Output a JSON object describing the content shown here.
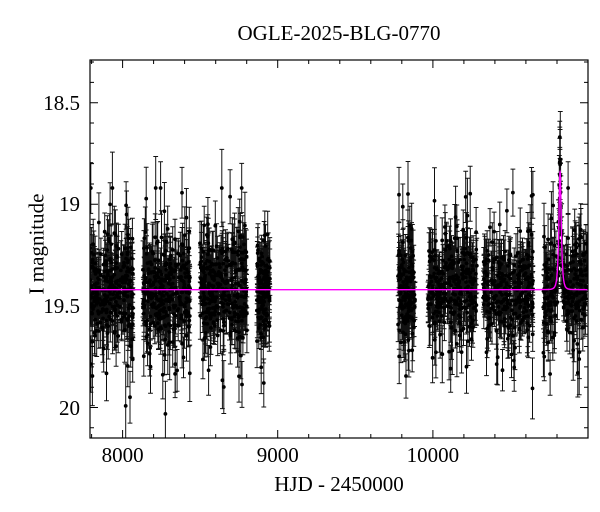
{
  "title": "OGLE-2025-BLG-0770",
  "chart_data": {
    "type": "scatter",
    "title": "OGLE-2025-BLG-0770",
    "xlabel": "HJD - 2450000",
    "ylabel": "I magnitude",
    "xlim": [
      7790,
      11000
    ],
    "ylim": [
      20.15,
      18.29
    ],
    "y_axis_inverted": true,
    "grid": false,
    "x_major_ticks": [
      8000,
      9000,
      10000
    ],
    "x_tick_labels": [
      "8000",
      "9000",
      "10000"
    ],
    "x_minor_step": 200,
    "y_major_ticks": [
      18.5,
      19.0,
      19.5,
      20.0
    ],
    "y_tick_labels": [
      "18.5",
      "19",
      "19.5",
      "20"
    ],
    "y_minor_step": 0.1,
    "marker_color": "#000000",
    "model_color": "#ff00ff",
    "baseline_mag": 19.42,
    "model": {
      "kind": "paczynski",
      "t0": 10820,
      "tE": 11,
      "u0": 0.685,
      "I0": 19.42,
      "I_peak": 18.84
    },
    "seasons": [
      {
        "t_start": 7790,
        "t_end": 8067,
        "n_points": 300,
        "mag_mean": 19.42,
        "sigma_core": 0.115,
        "sigma_tail": 0.26,
        "tail_frac": 0.18
      },
      {
        "t_start": 8131,
        "t_end": 8434,
        "n_points": 330,
        "mag_mean": 19.42,
        "sigma_core": 0.115,
        "sigma_tail": 0.26,
        "tail_frac": 0.18
      },
      {
        "t_start": 8499,
        "t_end": 8802,
        "n_points": 330,
        "mag_mean": 19.42,
        "sigma_core": 0.115,
        "sigma_tail": 0.26,
        "tail_frac": 0.18
      },
      {
        "t_start": 8866,
        "t_end": 8950,
        "n_points": 140,
        "mag_mean": 19.42,
        "sigma_core": 0.11,
        "sigma_tail": 0.22,
        "tail_frac": 0.15
      },
      {
        "t_start": 9775,
        "t_end": 9885,
        "n_points": 150,
        "mag_mean": 19.42,
        "sigma_core": 0.115,
        "sigma_tail": 0.26,
        "tail_frac": 0.18
      },
      {
        "t_start": 9968,
        "t_end": 10284,
        "n_points": 300,
        "mag_mean": 19.42,
        "sigma_core": 0.115,
        "sigma_tail": 0.26,
        "tail_frac": 0.18
      },
      {
        "t_start": 10323,
        "t_end": 10645,
        "n_points": 280,
        "mag_mean": 19.42,
        "sigma_core": 0.11,
        "sigma_tail": 0.24,
        "tail_frac": 0.16
      },
      {
        "t_start": 10710,
        "t_end": 10995,
        "n_points": 260,
        "mag_mean": 19.42,
        "sigma_core": 0.115,
        "sigma_tail": 0.26,
        "tail_frac": 0.18
      }
    ],
    "event_points": [
      {
        "t": 10818.5,
        "mag": 18.67,
        "err": 0.05
      },
      {
        "t": 10819.5,
        "mag": 18.79,
        "err": 0.06
      },
      {
        "t": 10820.5,
        "mag": 18.86,
        "err": 0.06
      },
      {
        "t": 10817.5,
        "mag": 18.97,
        "err": 0.07
      },
      {
        "t": 10822.0,
        "mag": 19.07,
        "err": 0.08
      },
      {
        "t": 10815.0,
        "mag": 19.18,
        "err": 0.09
      },
      {
        "t": 10825.0,
        "mag": 19.3,
        "err": 0.1
      }
    ],
    "seed": 20250770
  }
}
